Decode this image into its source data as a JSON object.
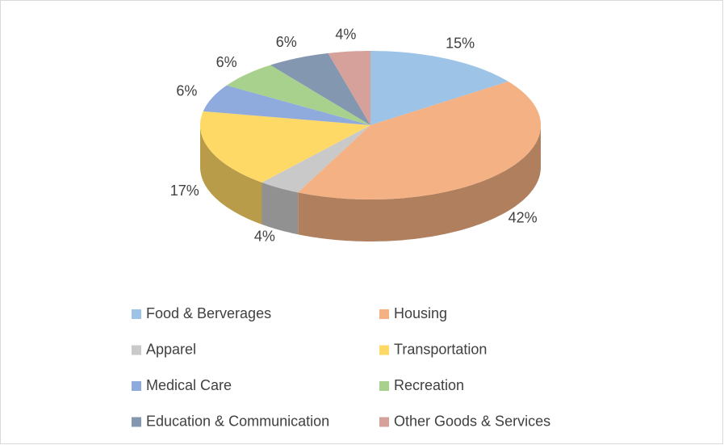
{
  "chart_data": {
    "type": "pie",
    "three_d": true,
    "categories": [
      "Food & Berverages",
      "Housing",
      "Apparel",
      "Transportation",
      "Medical Care",
      "Recreation",
      "Education & Communication",
      "Other Goods & Services"
    ],
    "values": [
      15,
      42,
      4,
      17,
      6,
      6,
      6,
      4
    ],
    "value_labels": [
      "15%",
      "42%",
      "4%",
      "17%",
      "6%",
      "6%",
      "6%",
      "4%"
    ],
    "colors": [
      "#9dc3e6",
      "#f4b183",
      "#c9c9c9",
      "#ffd966",
      "#8faadc",
      "#a9d18e",
      "#8497b0",
      "#d6a19a"
    ],
    "legend": "bottom"
  }
}
